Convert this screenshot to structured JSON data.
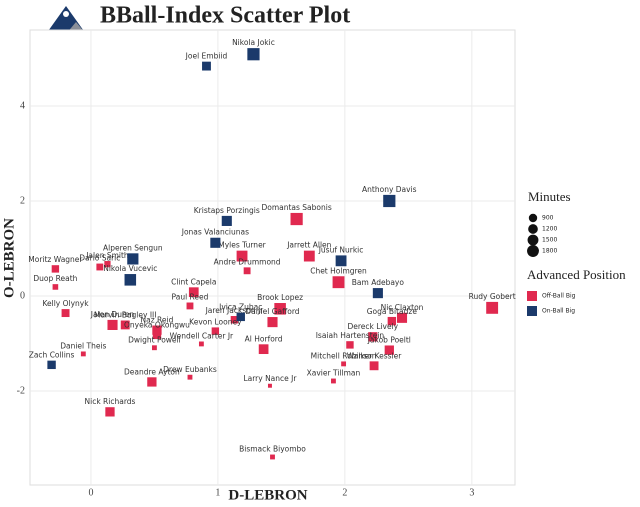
{
  "chart_data": {
    "type": "scatter",
    "title": "BBall-Index Scatter Plot",
    "x_label": "D-LEBRON",
    "y_label": "O-LEBRON",
    "xlim": [
      -0.48,
      3.34
    ],
    "ylim": [
      -3.98,
      5.6
    ],
    "xticks": [
      0,
      1,
      2,
      3
    ],
    "yticks": [
      -2,
      0,
      2,
      4
    ],
    "grid": true,
    "size_legend_title": "Minutes",
    "size_legend": [
      900,
      1200,
      1500,
      1800
    ],
    "color_legend_title": "Advanced Position",
    "series": [
      {
        "name": "Off-Ball Big",
        "color": "#e0294f",
        "labels": [
          "Domantas Sabonis",
          "Myles Turner",
          "Jarrett Allen",
          "Andre Drummond",
          "Chet Holmgren",
          "Jalen Smith",
          "Moritz Wagner",
          "Dario Saric",
          "Clint Capela",
          "Rudy Gobert",
          "Duop Reath",
          "Kelly Olynyk",
          "Paul Reed",
          "Brook Lopez",
          "Nic Claxton",
          "Goga Bitadze",
          "Jaren Jackson Jr",
          "Jalen Duren",
          "Marvin Bagley III",
          "Naz Reid",
          "Kevon Looney",
          "Daniel Gafford",
          "Onyeka Okongwu",
          "Dereck Lively",
          "Isaiah Hartenstein",
          "Daniel Theis",
          "Dwight Powell",
          "Wendell Carter Jr",
          "Al Horford",
          "Jakob Poeltl",
          "Mitchell Robinson",
          "Walker Kessler",
          "Drew Eubanks",
          "Deandre Ayton",
          "Larry Nance Jr",
          "Xavier Tillman",
          "Nick Richards",
          "Bismack Biyombo"
        ],
        "x": [
          1.62,
          1.19,
          1.72,
          1.23,
          1.95,
          0.13,
          -0.28,
          0.07,
          0.81,
          3.16,
          -0.28,
          -0.2,
          0.78,
          1.49,
          2.45,
          2.37,
          1.13,
          0.17,
          0.27,
          0.52,
          0.98,
          1.43,
          0.52,
          2.22,
          2.04,
          -0.06,
          0.5,
          0.87,
          1.36,
          2.35,
          1.99,
          2.23,
          0.78,
          0.48,
          1.41,
          1.91,
          0.15,
          1.43
        ],
        "values": [
          1.62,
          0.84,
          0.84,
          0.53,
          0.29,
          0.67,
          0.57,
          0.61,
          0.08,
          -0.25,
          0.19,
          -0.36,
          -0.21,
          -0.27,
          -0.46,
          -0.53,
          -0.5,
          -0.61,
          -0.61,
          -0.72,
          -0.74,
          -0.55,
          -0.82,
          -0.86,
          -1.03,
          -1.22,
          -1.09,
          -1.01,
          -1.12,
          -1.14,
          -1.43,
          -1.47,
          -1.71,
          -1.81,
          -1.89,
          -1.79,
          -2.44,
          -3.39
        ],
        "sizes": [
          1900,
          1500,
          1500,
          600,
          1800,
          500,
          700,
          600,
          1200,
          1800,
          400,
          800,
          600,
          1700,
          1300,
          900,
          700,
          1300,
          1000,
          1100,
          700,
          1300,
          900,
          1100,
          700,
          300,
          300,
          300,
          1200,
          1100,
          300,
          1000,
          300,
          1100,
          200,
          300,
          1100,
          300
        ]
      },
      {
        "name": "On-Ball Big",
        "color": "#1b3a6b",
        "labels": [
          "Nikola Jokic",
          "Joel Embiid",
          "Anthony Davis",
          "Kristaps Porzingis",
          "Jonas Valanciunas",
          "Jusuf Nurkic",
          "Alperen Sengun",
          "Nikola Vucevic",
          "Bam Adebayo",
          "Ivica Zubac",
          "Zach Collins"
        ],
        "x": [
          1.28,
          0.91,
          2.35,
          1.07,
          0.98,
          1.97,
          0.33,
          0.31,
          2.26,
          1.18,
          -0.31
        ],
        "values": [
          5.09,
          4.84,
          2.0,
          1.58,
          1.12,
          0.74,
          0.78,
          0.34,
          0.06,
          -0.44,
          -1.45
        ],
        "sizes": [
          1900,
          1000,
          1900,
          1300,
          1300,
          1500,
          1600,
          1700,
          1300,
          900,
          900
        ]
      }
    ]
  }
}
